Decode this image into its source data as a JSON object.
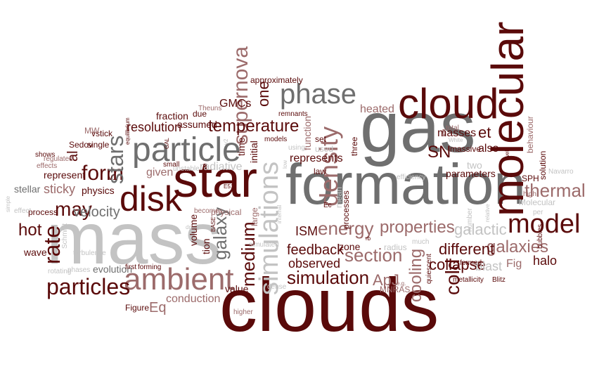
{
  "colors": {
    "dark_red": "#5a0a0a",
    "mauve": "#9c6b6b",
    "gray": "#6f6f6f",
    "light_gray": "#c3c3c3"
  },
  "words": [
    {
      "text": "clouds",
      "color": "dark_red",
      "vertical": false
    },
    {
      "text": "formation",
      "color": "gray",
      "vertical": false
    },
    {
      "text": "mass",
      "color": "light_gray",
      "vertical": false
    },
    {
      "text": "gas",
      "color": "gray",
      "vertical": false
    },
    {
      "text": "star",
      "color": "dark_red",
      "vertical": false
    },
    {
      "text": "molecular",
      "color": "dark_red",
      "vertical": true
    },
    {
      "text": "cloud",
      "color": "dark_red",
      "vertical": false
    },
    {
      "text": "particle",
      "color": "gray",
      "vertical": false
    },
    {
      "text": "disk",
      "color": "dark_red",
      "vertical": false
    },
    {
      "text": "ambient",
      "color": "mauve",
      "vertical": false
    },
    {
      "text": "simulations",
      "color": "light_gray",
      "vertical": true
    },
    {
      "text": "phase",
      "color": "gray",
      "vertical": false
    },
    {
      "text": "density",
      "color": "mauve",
      "vertical": true
    },
    {
      "text": "model",
      "color": "dark_red",
      "vertical": false
    },
    {
      "text": "particles",
      "color": "dark_red",
      "vertical": false
    },
    {
      "text": "supernova",
      "color": "mauve",
      "vertical": true
    },
    {
      "text": "temperature",
      "color": "dark_red",
      "vertical": false
    },
    {
      "text": "energy",
      "color": "mauve",
      "vertical": false
    },
    {
      "text": "properties",
      "color": "mauve",
      "vertical": false
    },
    {
      "text": "thermal",
      "color": "mauve",
      "vertical": false
    },
    {
      "text": "section",
      "color": "mauve",
      "vertical": false
    },
    {
      "text": "simulation",
      "color": "dark_red",
      "vertical": false
    },
    {
      "text": "form",
      "color": "dark_red",
      "vertical": false
    },
    {
      "text": "stars",
      "color": "gray",
      "vertical": true
    },
    {
      "text": "rate",
      "color": "dark_red",
      "vertical": true
    },
    {
      "text": "may",
      "color": "dark_red",
      "vertical": false
    },
    {
      "text": "hot",
      "color": "dark_red",
      "vertical": false
    },
    {
      "text": "velocity",
      "color": "gray",
      "vertical": false
    },
    {
      "text": "medium",
      "color": "dark_red",
      "vertical": true
    },
    {
      "text": "galaxy",
      "color": "gray",
      "vertical": true
    },
    {
      "text": "galaxies",
      "color": "mauve",
      "vertical": false
    },
    {
      "text": "cooling",
      "color": "mauve",
      "vertical": true
    },
    {
      "text": "cold",
      "color": "dark_red",
      "vertical": true
    },
    {
      "text": "collapse",
      "color": "dark_red",
      "vertical": false
    },
    {
      "text": "different",
      "color": "dark_red",
      "vertical": false
    },
    {
      "text": "galactic",
      "color": "light_gray",
      "vertical": false
    },
    {
      "text": "resolution",
      "color": "dark_red",
      "vertical": false
    },
    {
      "text": "sticky",
      "color": "mauve",
      "vertical": false
    },
    {
      "text": "ApJ",
      "color": "mauve",
      "vertical": false
    },
    {
      "text": "feedback",
      "color": "dark_red",
      "vertical": false
    },
    {
      "text": "observed",
      "color": "dark_red",
      "vertical": false
    },
    {
      "text": "conduction",
      "color": "mauve",
      "vertical": false
    },
    {
      "text": "one",
      "color": "dark_red",
      "vertical": true
    },
    {
      "text": "SN",
      "color": "dark_red",
      "vertical": false
    },
    {
      "text": "et",
      "color": "dark_red",
      "vertical": false
    },
    {
      "text": "al",
      "color": "dark_red",
      "vertical": true
    },
    {
      "text": "Eq",
      "color": "mauve",
      "vertical": false
    },
    {
      "text": "halo",
      "color": "dark_red",
      "vertical": false
    },
    {
      "text": "ISM",
      "color": "dark_red",
      "vertical": false
    },
    {
      "text": "blast",
      "color": "light_gray",
      "vertical": false
    },
    {
      "text": "Fig",
      "color": "mauve",
      "vertical": false
    },
    {
      "text": "masses",
      "color": "dark_red",
      "vertical": false
    },
    {
      "text": "heated",
      "color": "mauve",
      "vertical": false
    },
    {
      "text": "also",
      "color": "dark_red",
      "vertical": false
    },
    {
      "text": "GMCs",
      "color": "dark_red",
      "vertical": false
    },
    {
      "text": "radiative",
      "color": "light_gray",
      "vertical": false
    },
    {
      "text": "represents",
      "color": "dark_red",
      "vertical": false
    },
    {
      "text": "function",
      "color": "mauve",
      "vertical": true
    },
    {
      "text": "approximately",
      "color": "dark_red",
      "vertical": false
    },
    {
      "text": "fraction",
      "color": "dark_red",
      "vertical": false
    },
    {
      "text": "assumed",
      "color": "dark_red",
      "vertical": false
    },
    {
      "text": "given",
      "color": "mauve",
      "vertical": false
    },
    {
      "text": "represent",
      "color": "dark_red",
      "vertical": false
    },
    {
      "text": "stellar",
      "color": "gray",
      "vertical": false
    },
    {
      "text": "physics",
      "color": "dark_red",
      "vertical": false
    },
    {
      "text": "value",
      "color": "dark_red",
      "vertical": false
    },
    {
      "text": "volume",
      "color": "dark_red",
      "vertical": true
    },
    {
      "text": "time",
      "color": "dark_red",
      "vertical": true
    },
    {
      "text": "initial",
      "color": "dark_red",
      "vertical": true
    },
    {
      "text": "two",
      "color": "light_gray",
      "vertical": false
    },
    {
      "text": "parameters",
      "color": "dark_red",
      "vertical": false
    },
    {
      "text": "zone",
      "color": "dark_red",
      "vertical": false
    },
    {
      "text": "radius",
      "color": "light_gray",
      "vertical": false
    },
    {
      "text": "MNRAS",
      "color": "mauve",
      "vertical": false
    },
    {
      "text": "wave",
      "color": "dark_red",
      "vertical": false
    },
    {
      "text": "Figure",
      "color": "dark_red",
      "vertical": false
    },
    {
      "text": "tion",
      "color": "dark_red",
      "vertical": true
    },
    {
      "text": "evolution",
      "color": "gray",
      "vertical": false
    },
    {
      "text": "large",
      "color": "mauve",
      "vertical": true
    },
    {
      "text": "law",
      "color": "dark_red",
      "vertical": false
    },
    {
      "text": "three",
      "color": "dark_red",
      "vertical": true
    },
    {
      "text": "mean",
      "color": "light_gray",
      "vertical": true
    },
    {
      "text": "vstick",
      "color": "dark_red",
      "vertical": false
    },
    {
      "text": "single",
      "color": "dark_red",
      "vertical": false
    },
    {
      "text": "MW",
      "color": "mauve",
      "vertical": false
    },
    {
      "text": "v1",
      "color": "dark_red",
      "vertical": false
    },
    {
      "text": "Sedov",
      "color": "dark_red",
      "vertical": false
    },
    {
      "text": "due",
      "color": "dark_red",
      "vertical": false
    },
    {
      "text": "processes",
      "color": "dark_red",
      "vertical": true
    },
    {
      "text": "set",
      "color": "dark_red",
      "vertical": false
    },
    {
      "text": "used",
      "color": "light_gray",
      "vertical": false
    },
    {
      "text": "dense",
      "color": "light_gray",
      "vertical": false
    },
    {
      "text": "higher",
      "color": "mauve",
      "vertical": false
    },
    {
      "text": "first",
      "color": "dark_red",
      "vertical": false
    },
    {
      "text": "forming",
      "color": "dark_red",
      "vertical": false
    },
    {
      "text": "phases",
      "color": "light_gray",
      "vertical": false
    },
    {
      "text": "turbulence",
      "color": "light_gray",
      "vertical": false
    },
    {
      "text": "Schmidt",
      "color": "light_gray",
      "vertical": true
    },
    {
      "text": "rotating",
      "color": "light_gray",
      "vertical": false
    },
    {
      "text": "process",
      "color": "dark_red",
      "vertical": false
    },
    {
      "text": "effect",
      "color": "light_gray",
      "vertical": false
    },
    {
      "text": "shows",
      "color": "dark_red",
      "vertical": false
    },
    {
      "text": "effects",
      "color": "mauve",
      "vertical": false
    },
    {
      "text": "regulated",
      "color": "mauve",
      "vertical": false
    },
    {
      "text": "equilibrium",
      "color": "dark_red",
      "vertical": true
    },
    {
      "text": "small",
      "color": "dark_red",
      "vertical": false
    },
    {
      "text": "unstable",
      "color": "light_gray",
      "vertical": false
    },
    {
      "text": "becomes",
      "color": "mauve",
      "vertical": false
    },
    {
      "text": "physical",
      "color": "mauve",
      "vertical": false
    },
    {
      "text": "simulated",
      "color": "light_gray",
      "vertical": false
    },
    {
      "text": "using",
      "color": "light_gray",
      "vertical": false
    },
    {
      "text": "models",
      "color": "dark_red",
      "vertical": false
    },
    {
      "text": "remnants",
      "color": "dark_red",
      "vertical": false
    },
    {
      "text": "Theuns",
      "color": "mauve",
      "vertical": false
    },
    {
      "text": "formed",
      "color": "dark_red",
      "vertical": false
    },
    {
      "text": "number",
      "color": "light_gray",
      "vertical": true
    },
    {
      "text": "efficiency",
      "color": "light_gray",
      "vertical": false
    },
    {
      "text": "quiescent",
      "color": "dark_red",
      "vertical": true
    },
    {
      "text": "metallicity",
      "color": "dark_red",
      "vertical": false
    },
    {
      "text": "Blitz",
      "color": "dark_red",
      "vertical": false
    },
    {
      "text": "bubbles",
      "color": "dark_red",
      "vertical": true
    },
    {
      "text": "Molecular",
      "color": "light_gray",
      "vertical": false
    },
    {
      "text": "Navarro",
      "color": "light_gray",
      "vertical": false
    },
    {
      "text": "SPH",
      "color": "dark_red",
      "vertical": false
    },
    {
      "text": "massive",
      "color": "dark_red",
      "vertical": false
    },
    {
      "text": "total",
      "color": "mauve",
      "vertical": false
    },
    {
      "text": "behaviour",
      "color": "mauve",
      "vertical": true
    },
    {
      "text": "solution",
      "color": "dark_red",
      "vertical": true
    },
    {
      "text": "high",
      "color": "mauve",
      "vertical": false
    },
    {
      "text": "per",
      "color": "light_gray",
      "vertical": false
    },
    {
      "text": "well",
      "color": "dark_red",
      "vertical": true
    },
    {
      "text": "White",
      "color": "light_gray",
      "vertical": false
    },
    {
      "text": "much",
      "color": "light_gray",
      "vertical": false
    },
    {
      "text": "GAL",
      "color": "dark_red",
      "vertical": true
    },
    {
      "text": "BASE",
      "color": "dark_red",
      "vertical": true
    },
    {
      "text": "E51",
      "color": "dark_red",
      "vertical": false
    },
    {
      "text": "v2",
      "color": "light_gray",
      "vertical": true
    },
    {
      "text": "dn",
      "color": "light_gray",
      "vertical": false
    },
    {
      "text": "Ec",
      "color": "dark_red",
      "vertical": false
    },
    {
      "text": "rb",
      "color": "dark_red",
      "vertical": false
    },
    {
      "text": "e.g.",
      "color": "mauve",
      "vertical": false
    },
    {
      "text": "low",
      "color": "light_gray",
      "vertical": true
    },
    {
      "text": "internal",
      "color": "light_gray",
      "vertical": true
    },
    {
      "text": "km",
      "color": "dark_red",
      "vertical": true
    },
    {
      "text": "relative",
      "color": "light_gray",
      "vertical": true
    },
    {
      "text": "simple",
      "color": "light_gray",
      "vertical": true
    }
  ]
}
